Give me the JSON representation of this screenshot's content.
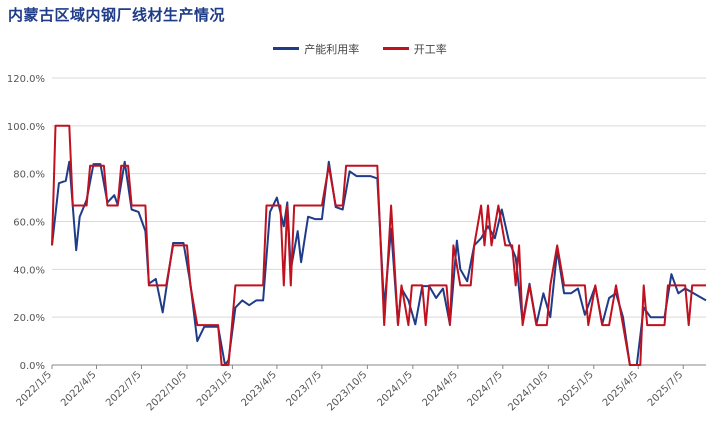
{
  "title": "内蒙古区域内钢厂线材生产情况",
  "chart_data": {
    "type": "line",
    "title": "内蒙古区域内钢厂线材生产情况",
    "xlabel": "",
    "ylabel": "",
    "ylim": [
      0,
      120
    ],
    "yticks": [
      "0.0%",
      "20.0%",
      "40.0%",
      "60.0%",
      "80.0%",
      "100.0%",
      "120.0%"
    ],
    "ytick_values": [
      0,
      20,
      40,
      60,
      80,
      100,
      120
    ],
    "xticks": [
      "2022/1/5",
      "2022/4/5",
      "2022/7/5",
      "2022/10/5",
      "2023/1/5",
      "2023/4/5",
      "2023/7/5",
      "2023/10/5",
      "2024/1/5",
      "2024/4/5",
      "2024/7/5",
      "2024/10/5",
      "2025/1/5",
      "2025/4/5",
      "2025/7/5"
    ],
    "xrange": [
      "2022-01-05",
      "2025-08-20"
    ],
    "grid": "horizontal",
    "legend_position": "top",
    "series": [
      {
        "name": "产能利用率",
        "color": "#1f3c88",
        "points": [
          [
            "2022-01-05",
            50
          ],
          [
            "2022-01-19",
            76
          ],
          [
            "2022-02-02",
            77
          ],
          [
            "2022-02-09",
            85
          ],
          [
            "2022-02-23",
            48
          ],
          [
            "2022-03-02",
            62
          ],
          [
            "2022-03-16",
            69
          ],
          [
            "2022-03-30",
            84
          ],
          [
            "2022-04-13",
            84
          ],
          [
            "2022-04-27",
            68
          ],
          [
            "2022-05-11",
            71
          ],
          [
            "2022-05-18",
            67
          ],
          [
            "2022-06-01",
            85
          ],
          [
            "2022-06-15",
            65
          ],
          [
            "2022-06-29",
            64
          ],
          [
            "2022-07-13",
            56
          ],
          [
            "2022-07-20",
            34
          ],
          [
            "2022-08-03",
            36
          ],
          [
            "2022-08-17",
            22
          ],
          [
            "2022-09-07",
            51
          ],
          [
            "2022-09-28",
            51
          ],
          [
            "2022-10-12",
            34
          ],
          [
            "2022-10-26",
            10
          ],
          [
            "2022-11-09",
            16
          ],
          [
            "2022-12-07",
            16
          ],
          [
            "2022-12-21",
            0
          ],
          [
            "2022-12-28",
            2
          ],
          [
            "2023-01-11",
            24
          ],
          [
            "2023-01-25",
            27
          ],
          [
            "2023-02-08",
            25
          ],
          [
            "2023-02-22",
            27
          ],
          [
            "2023-03-08",
            27
          ],
          [
            "2023-03-22",
            64
          ],
          [
            "2023-04-05",
            70
          ],
          [
            "2023-04-19",
            58
          ],
          [
            "2023-04-26",
            68
          ],
          [
            "2023-05-03",
            40
          ],
          [
            "2023-05-17",
            56
          ],
          [
            "2023-05-24",
            43
          ],
          [
            "2023-06-07",
            62
          ],
          [
            "2023-06-21",
            61
          ],
          [
            "2023-07-05",
            61
          ],
          [
            "2023-07-19",
            85
          ],
          [
            "2023-08-02",
            66
          ],
          [
            "2023-08-16",
            65
          ],
          [
            "2023-08-30",
            81
          ],
          [
            "2023-09-13",
            79
          ],
          [
            "2023-10-11",
            79
          ],
          [
            "2023-10-25",
            78
          ],
          [
            "2023-11-08",
            24
          ],
          [
            "2023-11-22",
            57
          ],
          [
            "2023-12-06",
            17
          ],
          [
            "2023-12-13",
            32
          ],
          [
            "2023-12-27",
            27
          ],
          [
            "2024-01-10",
            17
          ],
          [
            "2024-01-24",
            33
          ],
          [
            "2024-02-07",
            33
          ],
          [
            "2024-02-21",
            28
          ],
          [
            "2024-03-06",
            32
          ],
          [
            "2024-03-20",
            17
          ],
          [
            "2024-04-03",
            52
          ],
          [
            "2024-04-10",
            40
          ],
          [
            "2024-04-24",
            35
          ],
          [
            "2024-05-08",
            50
          ],
          [
            "2024-05-22",
            53
          ],
          [
            "2024-06-05",
            58
          ],
          [
            "2024-06-19",
            53
          ],
          [
            "2024-07-03",
            65
          ],
          [
            "2024-07-17",
            52
          ],
          [
            "2024-07-31",
            45
          ],
          [
            "2024-08-14",
            18
          ],
          [
            "2024-08-28",
            34
          ],
          [
            "2024-09-11",
            17
          ],
          [
            "2024-09-25",
            30
          ],
          [
            "2024-10-09",
            20
          ],
          [
            "2024-10-23",
            48
          ],
          [
            "2024-11-06",
            30
          ],
          [
            "2024-11-20",
            30
          ],
          [
            "2024-12-04",
            32
          ],
          [
            "2024-12-18",
            21
          ],
          [
            "2025-01-08",
            33
          ],
          [
            "2025-01-22",
            17
          ],
          [
            "2025-02-05",
            28
          ],
          [
            "2025-02-19",
            30
          ],
          [
            "2025-03-05",
            20
          ],
          [
            "2025-03-19",
            0
          ],
          [
            "2025-04-02",
            0
          ],
          [
            "2025-04-16",
            24
          ],
          [
            "2025-04-30",
            20
          ],
          [
            "2025-05-28",
            20
          ],
          [
            "2025-06-11",
            38
          ],
          [
            "2025-06-25",
            30
          ],
          [
            "2025-07-09",
            32
          ],
          [
            "2025-08-20",
            27
          ]
        ]
      },
      {
        "name": "开工率",
        "color": "#c0111f",
        "points": [
          [
            "2022-01-05",
            50
          ],
          [
            "2022-01-12",
            100
          ],
          [
            "2022-02-09",
            100
          ],
          [
            "2022-02-16",
            66.7
          ],
          [
            "2022-03-16",
            66.7
          ],
          [
            "2022-03-23",
            83.3
          ],
          [
            "2022-04-20",
            83.3
          ],
          [
            "2022-04-27",
            66.7
          ],
          [
            "2022-05-18",
            66.7
          ],
          [
            "2022-05-25",
            83.3
          ],
          [
            "2022-06-08",
            83.3
          ],
          [
            "2022-06-15",
            66.7
          ],
          [
            "2022-07-13",
            66.7
          ],
          [
            "2022-07-20",
            33.3
          ],
          [
            "2022-08-24",
            33.3
          ],
          [
            "2022-09-07",
            50
          ],
          [
            "2022-10-05",
            50
          ],
          [
            "2022-10-12",
            33.3
          ],
          [
            "2022-10-26",
            16.7
          ],
          [
            "2022-12-07",
            16.7
          ],
          [
            "2022-12-14",
            0
          ],
          [
            "2022-12-28",
            0
          ],
          [
            "2023-01-11",
            33.3
          ],
          [
            "2023-03-08",
            33.3
          ],
          [
            "2023-03-15",
            66.7
          ],
          [
            "2023-04-12",
            66.7
          ],
          [
            "2023-04-19",
            33.3
          ],
          [
            "2023-04-26",
            66.7
          ],
          [
            "2023-05-03",
            33.3
          ],
          [
            "2023-05-10",
            66.7
          ],
          [
            "2023-07-05",
            66.7
          ],
          [
            "2023-07-19",
            83.3
          ],
          [
            "2023-08-02",
            66.7
          ],
          [
            "2023-08-16",
            66.7
          ],
          [
            "2023-08-23",
            83.3
          ],
          [
            "2023-10-25",
            83.3
          ],
          [
            "2023-11-08",
            16.7
          ],
          [
            "2023-11-22",
            66.7
          ],
          [
            "2023-12-06",
            16.7
          ],
          [
            "2023-12-13",
            33.3
          ],
          [
            "2023-12-27",
            16.7
          ],
          [
            "2024-01-03",
            33.3
          ],
          [
            "2024-01-24",
            33.3
          ],
          [
            "2024-01-31",
            16.7
          ],
          [
            "2024-02-07",
            33.3
          ],
          [
            "2024-03-13",
            33.3
          ],
          [
            "2024-03-20",
            16.7
          ],
          [
            "2024-03-27",
            50
          ],
          [
            "2024-04-10",
            33.3
          ],
          [
            "2024-05-01",
            33.3
          ],
          [
            "2024-05-08",
            50
          ],
          [
            "2024-05-22",
            66.7
          ],
          [
            "2024-05-29",
            50
          ],
          [
            "2024-06-05",
            66.7
          ],
          [
            "2024-06-12",
            50
          ],
          [
            "2024-06-26",
            66.7
          ],
          [
            "2024-07-10",
            50
          ],
          [
            "2024-07-24",
            50
          ],
          [
            "2024-07-31",
            33.3
          ],
          [
            "2024-08-07",
            50
          ],
          [
            "2024-08-14",
            16.7
          ],
          [
            "2024-08-28",
            33.3
          ],
          [
            "2024-09-11",
            16.7
          ],
          [
            "2024-10-02",
            16.7
          ],
          [
            "2024-10-09",
            33.3
          ],
          [
            "2024-10-23",
            50
          ],
          [
            "2024-11-06",
            33.3
          ],
          [
            "2024-12-18",
            33.3
          ],
          [
            "2024-12-25",
            16.7
          ],
          [
            "2025-01-08",
            33.3
          ],
          [
            "2025-01-22",
            16.7
          ],
          [
            "2025-02-05",
            16.7
          ],
          [
            "2025-02-19",
            33.3
          ],
          [
            "2025-03-05",
            16.7
          ],
          [
            "2025-03-19",
            0
          ],
          [
            "2025-04-09",
            0
          ],
          [
            "2025-04-16",
            33.3
          ],
          [
            "2025-04-23",
            16.7
          ],
          [
            "2025-05-28",
            16.7
          ],
          [
            "2025-06-04",
            33.3
          ],
          [
            "2025-07-09",
            33.3
          ],
          [
            "2025-07-16",
            16.7
          ],
          [
            "2025-07-23",
            33.3
          ],
          [
            "2025-08-20",
            33.3
          ]
        ]
      }
    ]
  }
}
